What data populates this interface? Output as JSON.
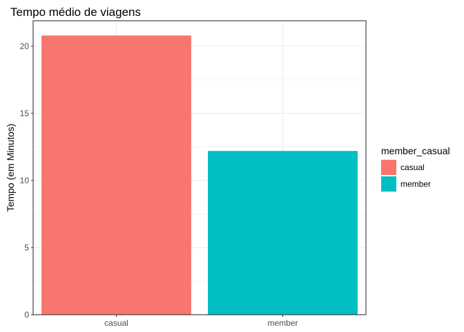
{
  "chart_data": {
    "type": "bar",
    "title": "Tempo médio de viagens",
    "xlabel": "",
    "ylabel": "Tempo (em Minutos)",
    "categories": [
      "casual",
      "member"
    ],
    "values": [
      20.8,
      12.2
    ],
    "colors": [
      "#F8766D",
      "#00BFC4"
    ],
    "ylim": [
      0,
      21.9
    ],
    "yticks": [
      "0",
      "5",
      "10",
      "15",
      "20"
    ],
    "ytick_values": [
      0,
      5,
      10,
      15,
      20
    ],
    "grid": true,
    "legend": {
      "title": "member_casual",
      "placement": "right",
      "entries": [
        "casual",
        "member"
      ]
    }
  }
}
